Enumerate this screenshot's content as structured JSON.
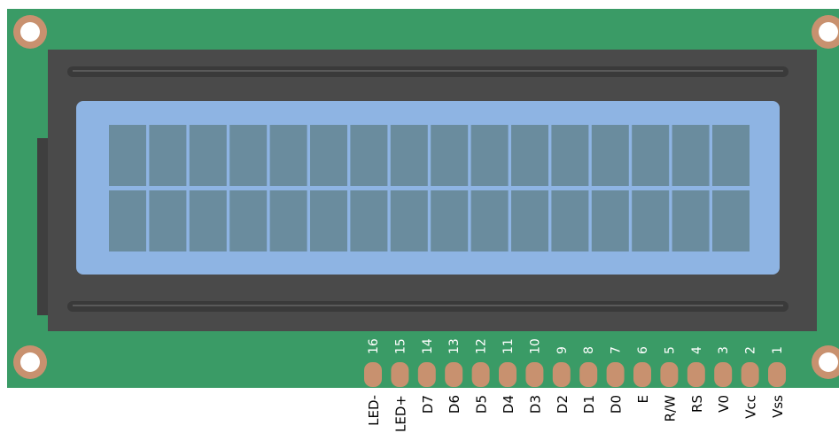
{
  "module": {
    "board_color": "#3a9b66",
    "bezel_color": "#4a4a4a",
    "screen_color": "#8eb4e3",
    "cell_color": "#6a8c9e",
    "pad_color": "#c8916f",
    "rows": 2,
    "columns": 16
  },
  "pins": [
    {
      "number": "16",
      "label": "LED-"
    },
    {
      "number": "15",
      "label": "LED+"
    },
    {
      "number": "14",
      "label": "D7"
    },
    {
      "number": "13",
      "label": "D6"
    },
    {
      "number": "12",
      "label": "D5"
    },
    {
      "number": "11",
      "label": "D4"
    },
    {
      "number": "10",
      "label": "D3"
    },
    {
      "number": "9",
      "label": "D2"
    },
    {
      "number": "8",
      "label": "D1"
    },
    {
      "number": "7",
      "label": "D0"
    },
    {
      "number": "6",
      "label": "E"
    },
    {
      "number": "5",
      "label": "R/W"
    },
    {
      "number": "4",
      "label": "RS"
    },
    {
      "number": "3",
      "label": "V0"
    },
    {
      "number": "2",
      "label": "Vcc"
    },
    {
      "number": "1",
      "label": "Vss"
    }
  ]
}
